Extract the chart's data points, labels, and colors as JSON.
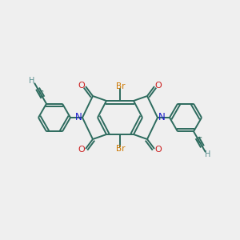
{
  "bg_color": "#efefef",
  "bond_color": "#2d6b5e",
  "N_color": "#1a1acc",
  "O_color": "#cc2020",
  "Br_color": "#cc7700",
  "H_color": "#5a9090",
  "C_color": "#2d6b5e",
  "lw": 1.4,
  "figsize": [
    3.0,
    3.0
  ],
  "dpi": 100,
  "xlim": [
    0,
    300
  ],
  "ylim": [
    0,
    300
  ]
}
